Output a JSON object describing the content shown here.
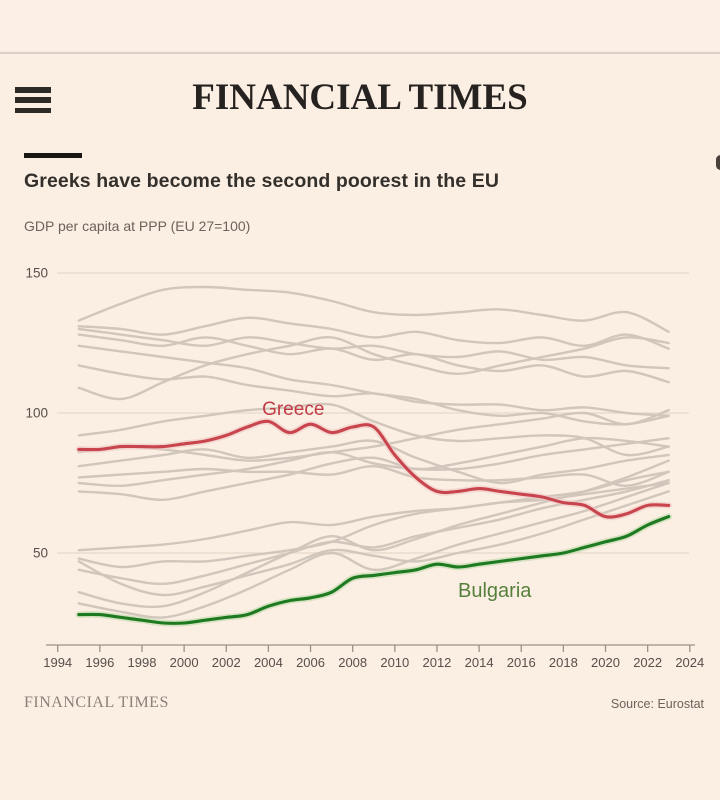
{
  "header": {
    "masthead": "FINANCIAL TIMES",
    "menu_icon": "hamburger-icon"
  },
  "article": {
    "title": "Greeks have become the second poorest in the EU",
    "subtitle": "GDP per capita at PPP (EU 27=100)"
  },
  "footer": {
    "brand": "FINANCIAL TIMES",
    "source": "Source: Eurostat"
  },
  "colors": {
    "background": "#fbeee3",
    "greece_line": "#c9454e",
    "greece_halo": "#eec9c5",
    "greece_label": "#c23c46",
    "bulgaria_line": "#1d7a20",
    "bulgaria_halo": "#bcd9a6",
    "bulgaria_label": "#56803c",
    "gray_line": "#d1c6bc",
    "gridline": "#e5d9cc",
    "axis": "#9a9188",
    "tick_text": "#57504b"
  },
  "chart_data": {
    "type": "line",
    "title": "Greeks have become the second poorest in the EU",
    "subtitle": "GDP per capita at PPP (EU 27=100)",
    "xlim": [
      1994,
      2024
    ],
    "ylim": [
      15,
      155
    ],
    "x_ticks": [
      1994,
      1996,
      1998,
      2000,
      2002,
      2004,
      2006,
      2008,
      2010,
      2012,
      2014,
      2016,
      2018,
      2020,
      2022,
      2024
    ],
    "y_ticks": [
      50,
      100,
      150
    ],
    "grid": "horizontal",
    "legend_position": "inline-labels",
    "x": [
      1995,
      1996,
      1997,
      1998,
      1999,
      2000,
      2001,
      2002,
      2003,
      2004,
      2005,
      2006,
      2007,
      2008,
      2009,
      2010,
      2011,
      2012,
      2013,
      2014,
      2015,
      2016,
      2017,
      2018,
      2019,
      2020,
      2021,
      2022,
      2023
    ],
    "series": [
      {
        "name": "Greece",
        "color": "#c9454e",
        "values": [
          87,
          87,
          88,
          88,
          88,
          89,
          90,
          92,
          95,
          97,
          93,
          96,
          93,
          95,
          95,
          85,
          77,
          72,
          72,
          73,
          72,
          71,
          70,
          68,
          67,
          63,
          64,
          67,
          67
        ]
      },
      {
        "name": "Bulgaria",
        "color": "#1d7a20",
        "values": [
          28,
          28,
          27,
          26,
          25,
          25,
          26,
          27,
          28,
          31,
          33,
          34,
          36,
          41,
          42,
          43,
          44,
          46,
          45,
          46,
          47,
          48,
          49,
          50,
          52,
          54,
          56,
          60,
          63
        ]
      }
    ],
    "annotations": [
      {
        "text": "Greece",
        "x": 2003.7,
        "y": 99.2,
        "color": "#c23c46",
        "size": 19
      },
      {
        "text": "Bulgaria",
        "x": 2013.0,
        "y": 34.2,
        "color": "#56803c",
        "size": 20
      }
    ],
    "background_series": {
      "note": "unlabelled EU member states, gray context lines",
      "x": [
        1995,
        1997,
        1999,
        2001,
        2003,
        2005,
        2007,
        2009,
        2011,
        2013,
        2015,
        2017,
        2019,
        2021,
        2023
      ],
      "lines": [
        [
          133,
          139,
          144,
          145,
          144,
          143,
          140,
          136,
          135,
          136,
          137,
          135,
          133,
          136,
          129
        ],
        [
          131,
          130,
          128,
          131,
          134,
          132,
          130,
          127,
          129,
          126,
          125,
          127,
          124,
          128,
          123
        ],
        [
          130,
          128,
          126,
          124,
          127,
          125,
          123,
          124,
          121,
          120,
          122,
          119,
          120,
          117,
          116
        ],
        [
          128,
          126,
          124,
          127,
          124,
          121,
          123,
          119,
          121,
          117,
          115,
          117,
          113,
          115,
          111
        ],
        [
          124,
          122,
          120,
          118,
          116,
          112,
          110,
          107,
          105,
          101,
          99,
          100,
          97,
          96,
          99
        ],
        [
          117,
          114,
          112,
          113,
          110,
          108,
          106,
          107,
          104,
          103,
          103,
          101,
          102,
          100,
          99
        ],
        [
          109,
          105,
          111,
          117,
          121,
          124,
          127,
          121,
          117,
          114,
          117,
          120,
          123,
          127,
          125
        ],
        [
          92,
          94,
          97,
          99,
          101,
          102,
          103,
          97,
          92,
          90,
          91,
          92,
          91,
          85,
          88
        ],
        [
          86,
          88,
          87,
          85,
          83,
          84,
          86,
          88,
          91,
          94,
          96,
          98,
          100,
          96,
          101
        ],
        [
          81,
          83,
          85,
          87,
          84,
          86,
          88,
          90,
          84,
          79,
          75,
          78,
          80,
          83,
          85
        ],
        [
          77,
          78,
          79,
          80,
          79,
          79,
          78,
          81,
          77,
          76,
          76,
          77,
          78,
          74,
          79
        ],
        [
          75,
          74,
          76,
          78,
          80,
          83,
          86,
          82,
          80,
          80,
          82,
          85,
          87,
          89,
          91
        ],
        [
          72,
          71,
          69,
          72,
          75,
          78,
          82,
          84,
          80,
          82,
          85,
          88,
          91,
          90,
          88
        ],
        [
          51,
          52,
          53,
          55,
          58,
          61,
          60,
          63,
          65,
          66,
          68,
          69,
          71,
          73,
          75
        ],
        [
          48,
          45,
          47,
          47,
          49,
          51,
          54,
          60,
          64,
          66,
          68,
          70,
          72,
          76,
          79
        ],
        [
          47,
          39,
          35,
          38,
          42,
          46,
          51,
          49,
          47,
          50,
          53,
          57,
          62,
          67,
          72
        ],
        [
          36,
          32,
          31,
          36,
          43,
          50,
          56,
          51,
          55,
          60,
          64,
          68,
          72,
          77,
          83
        ],
        [
          32,
          29,
          27,
          31,
          37,
          44,
          50,
          44,
          48,
          53,
          57,
          61,
          65,
          70,
          75
        ],
        [
          44,
          41,
          39,
          42,
          46,
          50,
          54,
          52,
          56,
          59,
          62,
          66,
          69,
          72,
          76
        ]
      ]
    }
  }
}
